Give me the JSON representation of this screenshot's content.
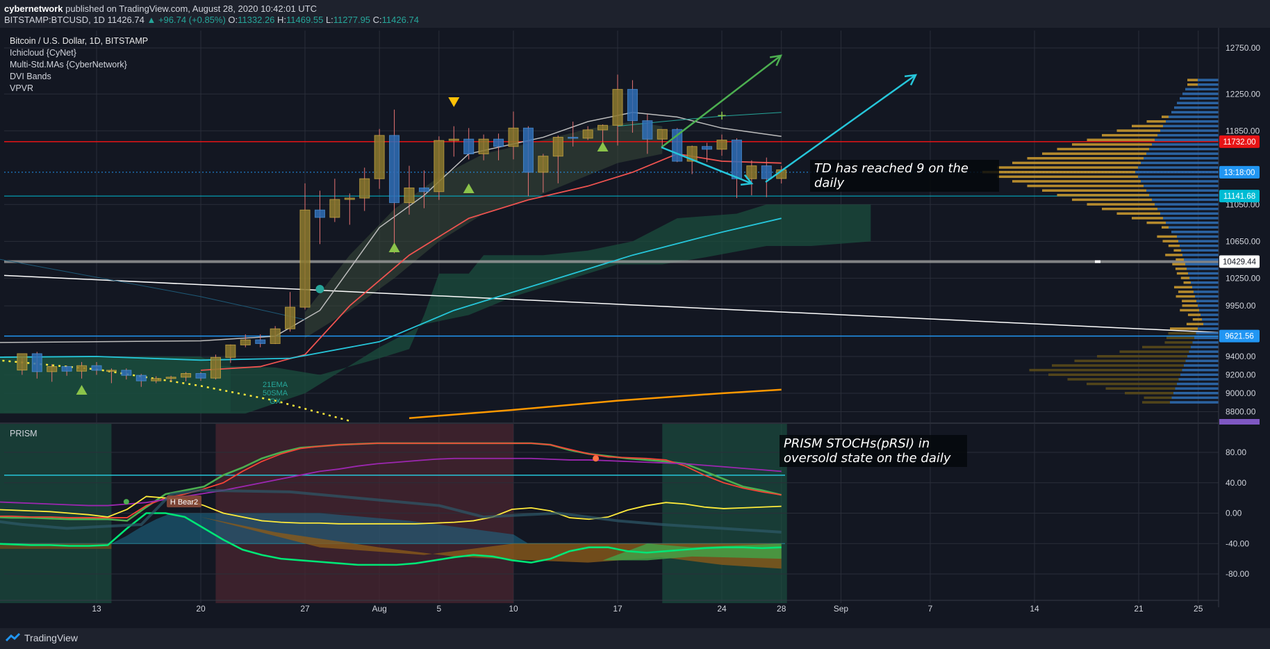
{
  "header": {
    "author": "cybernetwork",
    "published": "published on TradingView.com, August 28, 2020 10:42:01 UTC",
    "symbol": "BITSTAMP:BTCUSD, 1D",
    "last": "11426.74",
    "change": "▲ +96.74 (+0.85%)",
    "o_label": "O:",
    "o": "11332.26",
    "h_label": "H:",
    "h": "11469.55",
    "l_label": "L:",
    "l": "11277.95",
    "c_label": "C:",
    "c": "11426.74"
  },
  "legend": {
    "title": "Bitcoin / U.S. Dollar, 1D, BITSTAMP",
    "indicators": [
      "Ichicloud {CyNet}",
      "Multi-Std.MAs {CyberNetwork}",
      "DVI Bands",
      "VPVR"
    ]
  },
  "annotations": {
    "td_note": "TD has reached 9 on the daily",
    "prism_note": "PRISM STOCHs(pRSI) in oversold state on the daily",
    "ema_label": [
      "21EMA",
      "50SMA",
      "GX"
    ],
    "bear_label": "H Bear2"
  },
  "prism_title": "PRISM",
  "price_labels": [
    {
      "text": "11732.00",
      "color": "#e81416",
      "value": 11732
    },
    {
      "text": "13:18:00",
      "color": "#2196f3",
      "value": 11400
    },
    {
      "text": "11141.68",
      "color": "#00bcd4",
      "value": 11141.68
    },
    {
      "text": "10429.44",
      "color": "#ffffff",
      "value": 10429.44
    },
    {
      "text": "9621.56",
      "color": "#2196f3",
      "value": 9621.56
    }
  ],
  "footer": {
    "brand": "TradingView"
  },
  "chart_data": [
    {
      "type": "candlestick",
      "title": "Bitcoin / U.S. Dollar, 1D, BITSTAMP",
      "y_ticks": [
        "12750.00",
        "12250.00",
        "11850.00",
        "11050.00",
        "10650.00",
        "10250.00",
        "9950.00",
        "9400.00",
        "9200.00",
        "9000.00",
        "8800.00"
      ],
      "x_ticks": [
        "13",
        "20",
        "27",
        "Aug",
        "5",
        "10",
        "17",
        "24",
        "28",
        "Sep",
        "7",
        "14",
        "21",
        "25"
      ],
      "candles": [
        {
          "d": "Jul 08",
          "o": 9252,
          "h": 9390,
          "l": 9200,
          "c": 9430
        },
        {
          "d": "Jul 09",
          "o": 9430,
          "h": 9450,
          "l": 9160,
          "c": 9235
        },
        {
          "d": "Jul 10",
          "o": 9235,
          "h": 9315,
          "l": 9125,
          "c": 9290
        },
        {
          "d": "Jul 11",
          "o": 9290,
          "h": 9300,
          "l": 9190,
          "c": 9240
        },
        {
          "d": "Jul 12",
          "o": 9240,
          "h": 9340,
          "l": 9160,
          "c": 9300
        },
        {
          "d": "Jul 13",
          "o": 9300,
          "h": 9340,
          "l": 9200,
          "c": 9250
        },
        {
          "d": "Jul 14",
          "o": 9250,
          "h": 9270,
          "l": 9110,
          "c": 9250
        },
        {
          "d": "Jul 15",
          "o": 9250,
          "h": 9270,
          "l": 9150,
          "c": 9195
        },
        {
          "d": "Jul 16",
          "o": 9195,
          "h": 9210,
          "l": 9070,
          "c": 9135
        },
        {
          "d": "Jul 17",
          "o": 9135,
          "h": 9185,
          "l": 9110,
          "c": 9160
        },
        {
          "d": "Jul 18",
          "o": 9160,
          "h": 9190,
          "l": 9130,
          "c": 9175
        },
        {
          "d": "Jul 19",
          "o": 9175,
          "h": 9230,
          "l": 9130,
          "c": 9215
        },
        {
          "d": "Jul 20",
          "o": 9215,
          "h": 9230,
          "l": 9135,
          "c": 9165
        },
        {
          "d": "Jul 21",
          "o": 9165,
          "h": 9420,
          "l": 9150,
          "c": 9390
        },
        {
          "d": "Jul 22",
          "o": 9390,
          "h": 9530,
          "l": 9330,
          "c": 9525
        },
        {
          "d": "Jul 23",
          "o": 9525,
          "h": 9640,
          "l": 9500,
          "c": 9580
        },
        {
          "d": "Jul 24",
          "o": 9580,
          "h": 9640,
          "l": 9500,
          "c": 9540
        },
        {
          "d": "Jul 25",
          "o": 9540,
          "h": 9730,
          "l": 9535,
          "c": 9700
        },
        {
          "d": "Jul 26",
          "o": 9700,
          "h": 10100,
          "l": 9670,
          "c": 9935
        },
        {
          "d": "Jul 27",
          "o": 9935,
          "h": 11280,
          "l": 9910,
          "c": 10990
        },
        {
          "d": "Jul 28",
          "o": 10990,
          "h": 11200,
          "l": 10620,
          "c": 10910
        },
        {
          "d": "Jul 29",
          "o": 10910,
          "h": 11330,
          "l": 10860,
          "c": 11105
        },
        {
          "d": "Jul 30",
          "o": 11105,
          "h": 11170,
          "l": 10830,
          "c": 11120
        },
        {
          "d": "Jul 31",
          "o": 11120,
          "h": 11450,
          "l": 10980,
          "c": 11330
        },
        {
          "d": "Aug 01",
          "o": 11330,
          "h": 11870,
          "l": 11220,
          "c": 11800
        },
        {
          "d": "Aug 02",
          "o": 11800,
          "h": 12080,
          "l": 10520,
          "c": 11070
        },
        {
          "d": "Aug 03",
          "o": 11070,
          "h": 11470,
          "l": 10940,
          "c": 11230
        },
        {
          "d": "Aug 04",
          "o": 11230,
          "h": 11420,
          "l": 11010,
          "c": 11190
        },
        {
          "d": "Aug 05",
          "o": 11190,
          "h": 11790,
          "l": 11100,
          "c": 11745
        },
        {
          "d": "Aug 06",
          "o": 11745,
          "h": 11900,
          "l": 11570,
          "c": 11760
        },
        {
          "d": "Aug 07",
          "o": 11760,
          "h": 11880,
          "l": 11540,
          "c": 11600
        },
        {
          "d": "Aug 08",
          "o": 11600,
          "h": 11810,
          "l": 11530,
          "c": 11760
        },
        {
          "d": "Aug 09",
          "o": 11760,
          "h": 11820,
          "l": 11530,
          "c": 11680
        },
        {
          "d": "Aug 10",
          "o": 11680,
          "h": 12060,
          "l": 11540,
          "c": 11880
        },
        {
          "d": "Aug 11",
          "o": 11880,
          "h": 11900,
          "l": 11140,
          "c": 11400
        },
        {
          "d": "Aug 12",
          "o": 11400,
          "h": 11600,
          "l": 11180,
          "c": 11575
        },
        {
          "d": "Aug 13",
          "o": 11575,
          "h": 11800,
          "l": 11280,
          "c": 11780
        },
        {
          "d": "Aug 14",
          "o": 11780,
          "h": 11950,
          "l": 11680,
          "c": 11770
        },
        {
          "d": "Aug 15",
          "o": 11770,
          "h": 11900,
          "l": 11750,
          "c": 11860
        },
        {
          "d": "Aug 16",
          "o": 11860,
          "h": 11920,
          "l": 11650,
          "c": 11910
        },
        {
          "d": "Aug 17",
          "o": 11910,
          "h": 12460,
          "l": 11690,
          "c": 12300
        },
        {
          "d": "Aug 18",
          "o": 12300,
          "h": 12400,
          "l": 11830,
          "c": 11960
        },
        {
          "d": "Aug 19",
          "o": 11960,
          "h": 12030,
          "l": 11600,
          "c": 11760
        },
        {
          "d": "Aug 20",
          "o": 11760,
          "h": 11860,
          "l": 11660,
          "c": 11865
        },
        {
          "d": "Aug 21",
          "o": 11865,
          "h": 11880,
          "l": 11510,
          "c": 11520
        },
        {
          "d": "Aug 22",
          "o": 11520,
          "h": 11690,
          "l": 11380,
          "c": 11680
        },
        {
          "d": "Aug 23",
          "o": 11680,
          "h": 11720,
          "l": 11510,
          "c": 11650
        },
        {
          "d": "Aug 24",
          "o": 11650,
          "h": 11810,
          "l": 11580,
          "c": 11750
        },
        {
          "d": "Aug 25",
          "o": 11750,
          "h": 11770,
          "l": 11120,
          "c": 11330
        },
        {
          "d": "Aug 26",
          "o": 11330,
          "h": 11530,
          "l": 11150,
          "c": 11470
        },
        {
          "d": "Aug 27",
          "o": 11470,
          "h": 11560,
          "l": 11130,
          "c": 11330
        },
        {
          "d": "Aug 28",
          "o": 11332.26,
          "h": 11469.55,
          "l": 11277.95,
          "c": 11426.74
        }
      ],
      "ylim": [
        8730,
        12950
      ]
    },
    {
      "type": "line",
      "title": "PRISM",
      "y_ticks": [
        "80.00",
        "40.00",
        "0.00",
        "-40.00",
        "-80.00"
      ],
      "ylim": [
        -120,
        100
      ],
      "series": [
        {
          "color": "#4caf50",
          "values": [
            -5,
            -6,
            -6,
            -7,
            -8,
            -8,
            -8,
            -10,
            8,
            25,
            30,
            35,
            50,
            60,
            72,
            80,
            86,
            88,
            90,
            91,
            92,
            92,
            92,
            92,
            92,
            92,
            92,
            92,
            92,
            90,
            83,
            78,
            75,
            72,
            70,
            68,
            65,
            55,
            45,
            35,
            30,
            24
          ]
        },
        {
          "color": "#f44336",
          "values": [
            -4,
            -4,
            -5,
            -5,
            -6,
            -6,
            -6,
            -6,
            10,
            20,
            25,
            32,
            40,
            55,
            68,
            78,
            85,
            88,
            90,
            91,
            92,
            92,
            92,
            92,
            92,
            92,
            92,
            92,
            92,
            90,
            84,
            78,
            74,
            73,
            72,
            70,
            62,
            50,
            40,
            33,
            28,
            24
          ]
        },
        {
          "color": "#9c27b0",
          "values": [
            15,
            14,
            13,
            12,
            11,
            10,
            10,
            12,
            14,
            18,
            22,
            26,
            30,
            35,
            40,
            45,
            50,
            55,
            58,
            62,
            65,
            67,
            69,
            71,
            72,
            72,
            72,
            72,
            72,
            71,
            70,
            70,
            69,
            68,
            67,
            66,
            65,
            63,
            61,
            59,
            57,
            55
          ]
        },
        {
          "color": "#ffeb3b",
          "values": [
            5,
            4,
            3,
            2,
            0,
            -2,
            -5,
            5,
            22,
            20,
            18,
            10,
            0,
            -5,
            -10,
            -12,
            -13,
            -13,
            -14,
            -14,
            -14,
            -14,
            -14,
            -13,
            -12,
            -10,
            -5,
            5,
            7,
            3,
            -6,
            -8,
            -5,
            4,
            10,
            14,
            12,
            8,
            6,
            7,
            8,
            9
          ]
        },
        {
          "color": "#00e676",
          "values": [
            -40,
            -41,
            -42,
            -42,
            -43,
            -43,
            -42,
            -20,
            0,
            0,
            -5,
            -20,
            -35,
            -48,
            -55,
            -60,
            -62,
            -64,
            -66,
            -68,
            -68,
            -68,
            -66,
            -62,
            -58,
            -55,
            -57,
            -62,
            -65,
            -60,
            -50,
            -45,
            -45,
            -50,
            -52,
            -50,
            -48,
            -46,
            -45,
            -45,
            -46,
            -45
          ]
        }
      ]
    }
  ]
}
